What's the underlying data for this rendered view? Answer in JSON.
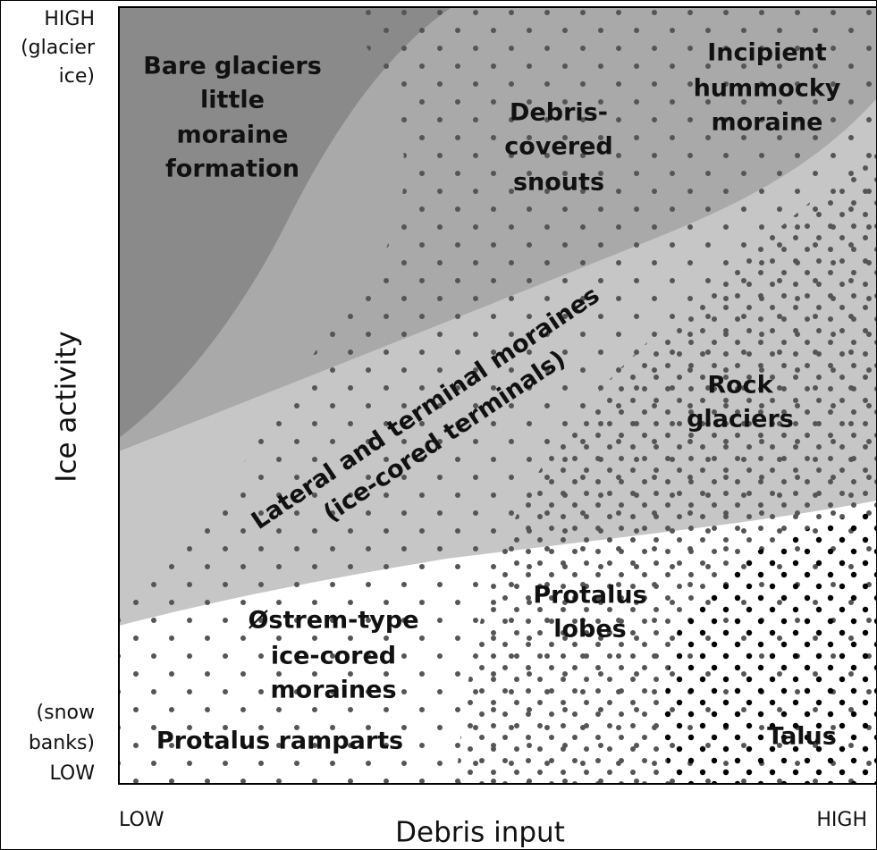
{
  "y_axis": {
    "label": "Ice activity",
    "high": [
      "HIGH",
      "(glacier",
      "ice)"
    ],
    "low": [
      "(snow",
      "banks)",
      "LOW"
    ]
  },
  "x_axis": {
    "label": "Debris input",
    "low": "LOW",
    "high": "HIGH"
  },
  "regions": [
    {
      "lines": [
        "Bare glaciers",
        "little",
        "moraine",
        "formation"
      ]
    },
    {
      "lines": [
        "Debris-",
        "covered",
        "snouts"
      ]
    },
    {
      "lines": [
        "Incipient",
        "hummocky",
        "moraine"
      ]
    },
    {
      "lines": [
        "Lateral and terminal moraines",
        "(ice-cored terminals)"
      ]
    },
    {
      "lines": [
        "Rock",
        "glaciers"
      ]
    },
    {
      "lines": [
        "Østrem-type",
        "ice-cored",
        "moraines"
      ]
    },
    {
      "lines": [
        "Protalus",
        "lobes"
      ]
    },
    {
      "lines": [
        "Protalus ramparts"
      ]
    },
    {
      "lines": [
        "Talus"
      ]
    }
  ]
}
